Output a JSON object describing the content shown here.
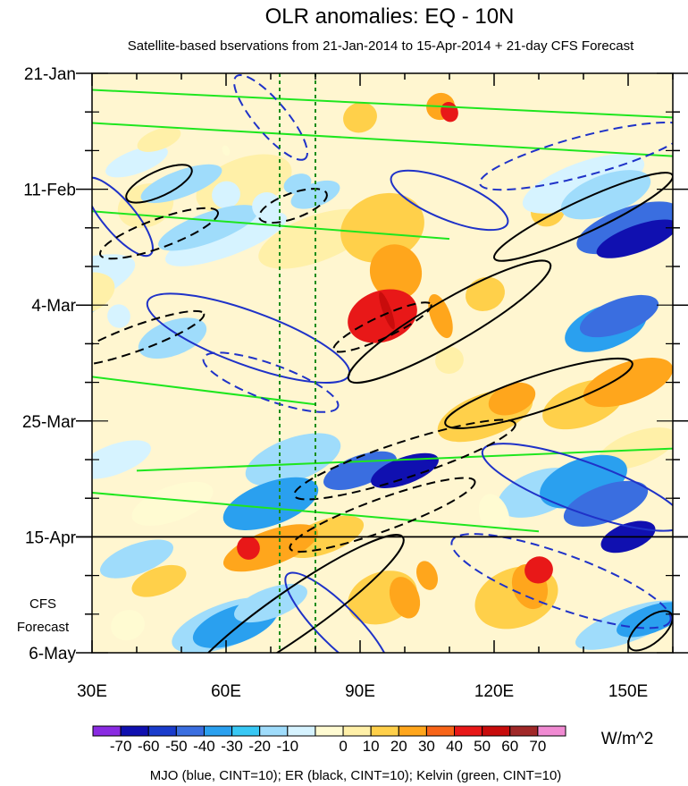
{
  "chart_data": {
    "type": "heatmap",
    "title": "OLR anomalies: EQ - 10N",
    "subtitle": "Satellite-based bservations from 21-Jan-2014 to 15-Apr-2014 + 21-day CFS Forecast",
    "x_ticks": [
      "30E",
      "60E",
      "90E",
      "120E",
      "150E"
    ],
    "x_tick_values": [
      30,
      60,
      90,
      120,
      150
    ],
    "xlim": [
      30,
      160
    ],
    "y_ticks": [
      "21-Jan",
      "11-Feb",
      "4-Mar",
      "25-Mar",
      "15-Apr",
      "6-May"
    ],
    "y_tick_days": [
      0,
      21,
      42,
      63,
      84,
      105
    ],
    "forecast_line_day": 84,
    "forecast_label": [
      "CFS",
      "Forecast"
    ],
    "reference_lines_lon": [
      72,
      80
    ],
    "colorbar": {
      "unit": "W/m^2",
      "labels": [
        "-70",
        "-60",
        "-50",
        "-40",
        "-30",
        "-20",
        "-10",
        "0",
        "10",
        "20",
        "30",
        "40",
        "50",
        "60",
        "70"
      ],
      "colors": [
        "#8a2be2",
        "#1010b0",
        "#1a3ccc",
        "#3a6ee0",
        "#2aa0ef",
        "#38c8f5",
        "#9fdcfb",
        "#d6f3ff",
        "#fffbd2",
        "#fff0a8",
        "#ffd04a",
        "#ffa61c",
        "#f86418",
        "#e81818",
        "#c80c0c",
        "#a02828",
        "#f08ad2"
      ]
    },
    "caption": "MJO (blue, CINT=10); ER (black, CINT=10); Kelvin (green, CINT=10)"
  },
  "colors": {
    "mjo": "#1f32c8",
    "er": "#000000",
    "kelvin": "#1ee61e",
    "reference": "#198c19"
  }
}
